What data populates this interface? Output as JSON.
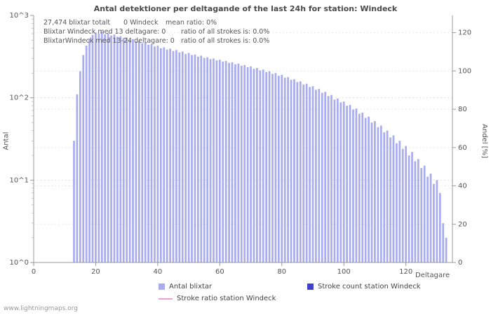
{
  "page": {
    "watermark": "www.lightningmaps.org"
  },
  "chart": {
    "title": "Antal detektioner per deltagande of the last 24h for station: Windeck",
    "annotations": {
      "line1": [
        "27,474 blixtar totalt",
        "0 Windeck",
        "mean ratio: 0%"
      ],
      "line2": [
        "Blixtar Windeck med 13 deltagare: 0",
        "ratio of all strokes is: 0.0%"
      ],
      "line3": [
        "BlixtarWindeck med 13-24 deltagare: 0",
        "ratio of all strokes is: 0.0%"
      ]
    },
    "left_axis_label": "Antal",
    "right_axis_label": "Andel [%]",
    "x_axis_label": "Deltagare",
    "legend": [
      {
        "label": "Antal blixtar",
        "color": "#a9adf0",
        "type": "square"
      },
      {
        "label": "Stroke count station Windeck",
        "color": "#4040cc",
        "type": "square"
      },
      {
        "label": "Stroke ratio station Windeck",
        "color": "#f0a0d4",
        "type": "line"
      }
    ]
  },
  "chart_data": {
    "type": "bar",
    "title": "Antal detektioner per deltagande of the last 24h for station: Windeck",
    "xlabel": "Deltagare",
    "ylabel_left": "Antal",
    "ylabel_right": "Andel [%]",
    "y_scale_left": "log",
    "ylim_left": [
      1,
      1000
    ],
    "ylim_right": [
      0,
      129
    ],
    "xlim": [
      0,
      135
    ],
    "x_ticks": [
      0,
      20,
      40,
      60,
      80,
      100,
      120
    ],
    "left_ticks": [
      "10^0",
      "10^1",
      "10^2",
      "10^3"
    ],
    "right_ticks": [
      0,
      20,
      40,
      60,
      80,
      100,
      120
    ],
    "grid": true,
    "legend_position": "bottom",
    "totals": {
      "blixtar_totalt": 27474,
      "windeck_strokes": 0,
      "mean_ratio_pct": 0
    },
    "series": [
      {
        "name": "Antal blixtar",
        "color": "#a9adf0",
        "axis": "left",
        "x": [
          13,
          14,
          15,
          16,
          17,
          18,
          19,
          20,
          21,
          22,
          23,
          24,
          25,
          26,
          27,
          28,
          29,
          30,
          31,
          32,
          33,
          34,
          35,
          36,
          37,
          38,
          39,
          40,
          41,
          42,
          43,
          44,
          45,
          46,
          47,
          48,
          49,
          50,
          51,
          52,
          53,
          54,
          55,
          56,
          57,
          58,
          59,
          60,
          61,
          62,
          63,
          64,
          65,
          66,
          67,
          68,
          69,
          70,
          71,
          72,
          73,
          74,
          75,
          76,
          77,
          78,
          79,
          80,
          81,
          82,
          83,
          84,
          85,
          86,
          87,
          88,
          89,
          90,
          91,
          92,
          93,
          94,
          95,
          96,
          97,
          98,
          99,
          100,
          101,
          102,
          103,
          104,
          105,
          106,
          107,
          108,
          109,
          110,
          111,
          112,
          113,
          114,
          115,
          116,
          117,
          118,
          119,
          120,
          121,
          122,
          123,
          124,
          125,
          126,
          127,
          128,
          129,
          130,
          131,
          132,
          133
        ],
        "values": [
          30,
          110,
          210,
          330,
          430,
          520,
          580,
          620,
          600,
          640,
          590,
          610,
          570,
          585,
          550,
          560,
          530,
          540,
          500,
          515,
          480,
          490,
          460,
          470,
          440,
          450,
          420,
          430,
          400,
          410,
          385,
          395,
          370,
          380,
          355,
          365,
          340,
          350,
          330,
          335,
          315,
          325,
          305,
          310,
          295,
          300,
          285,
          290,
          275,
          280,
          265,
          270,
          255,
          260,
          245,
          250,
          235,
          240,
          225,
          230,
          215,
          220,
          205,
          210,
          195,
          200,
          185,
          190,
          175,
          178,
          165,
          168,
          155,
          158,
          145,
          148,
          135,
          138,
          125,
          128,
          115,
          118,
          105,
          108,
          95,
          98,
          88,
          90,
          80,
          82,
          72,
          74,
          64,
          66,
          57,
          59,
          50,
          52,
          44,
          46,
          38,
          40,
          33,
          35,
          28,
          30,
          24,
          26,
          20,
          22,
          17,
          18,
          14,
          15,
          11,
          12,
          9,
          10,
          7,
          3,
          2
        ]
      },
      {
        "name": "Stroke count station Windeck",
        "color": "#4040cc",
        "axis": "left",
        "constant_value": 0
      },
      {
        "name": "Stroke ratio station Windeck",
        "color": "#f0a0d4",
        "axis": "right",
        "constant_value": 0
      }
    ]
  }
}
